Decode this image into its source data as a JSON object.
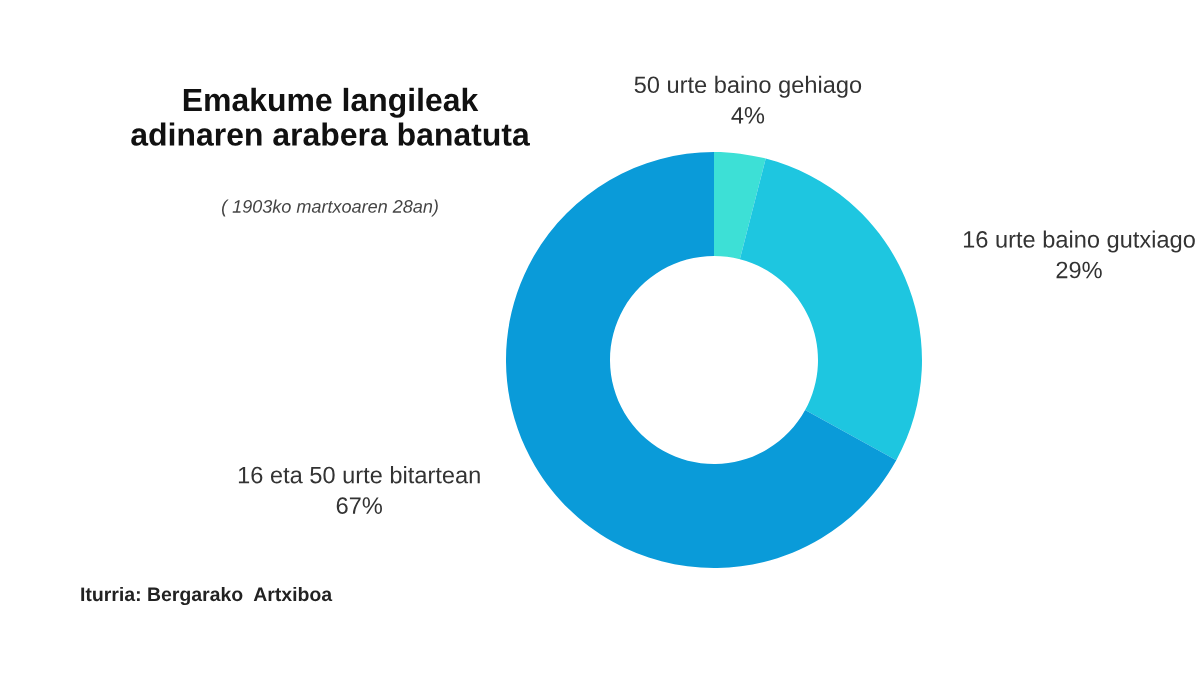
{
  "chart_data": {
    "type": "donut",
    "title": "Emakume langileak\nadinaren arabera banatuta",
    "subtitle": "( 1903ko martxoaren 28an)",
    "categories": [
      "50 urte baino gehiago",
      "16 urte baino gutxiago",
      "16 eta 50 urte bitartean"
    ],
    "values": [
      4,
      29,
      67
    ],
    "value_labels": [
      "4%",
      "29%",
      "67%"
    ],
    "colors": [
      "#3de0d6",
      "#1ec6e0",
      "#0a9bd9"
    ],
    "annotations": [
      "Iturria: Bergarako  Artxiboa"
    ],
    "legend": false
  }
}
